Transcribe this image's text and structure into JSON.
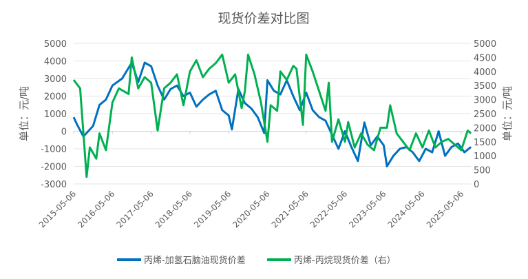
{
  "chart_data": {
    "type": "line",
    "title": "现货价差对比图",
    "ylabel_left": "单位：元/吨",
    "ylabel_right": "单位：元/吨",
    "ylim_left": [
      -3000,
      5000
    ],
    "ylim_right": [
      0,
      5000
    ],
    "yticks_left": [
      5000,
      4000,
      3000,
      2000,
      1000,
      0,
      -1000,
      -2000,
      -3000
    ],
    "yticks_right": [
      5000,
      4500,
      4000,
      3500,
      3000,
      2500,
      2000,
      1500,
      1000,
      500,
      0
    ],
    "xticks": [
      "2015-05-06",
      "2016-05-06",
      "2017-05-06",
      "2018-05-06",
      "2019-05-06",
      "2020-05-06",
      "2021-05-06",
      "2022-05-06",
      "2023-05-06",
      "2024-05-06",
      "2025-05-06"
    ],
    "grid": "horizontal",
    "legend": "bottom",
    "series": [
      {
        "name": "丙烯-加氢石脑油现货价差",
        "axis": "left",
        "color": "#0070C0",
        "x": [
          "2015-05",
          "2015-06",
          "2015-08",
          "2015-11",
          "2016-01",
          "2016-03",
          "2016-05",
          "2016-08",
          "2016-11",
          "2017-01",
          "2017-03",
          "2017-05",
          "2017-07",
          "2017-09",
          "2017-11",
          "2018-01",
          "2018-03",
          "2018-05",
          "2018-07",
          "2018-09",
          "2018-11",
          "2019-01",
          "2019-03",
          "2019-05",
          "2019-06",
          "2019-08",
          "2019-10",
          "2019-12",
          "2020-02",
          "2020-04",
          "2020-05",
          "2020-07",
          "2020-09",
          "2020-11",
          "2021-01",
          "2021-03",
          "2021-05",
          "2021-07",
          "2021-09",
          "2021-11",
          "2022-01",
          "2022-03",
          "2022-05",
          "2022-07",
          "2022-09",
          "2022-11",
          "2023-01",
          "2023-03",
          "2023-05",
          "2023-06",
          "2023-08",
          "2023-10",
          "2023-12",
          "2024-02",
          "2024-04",
          "2024-06",
          "2024-08",
          "2024-10",
          "2024-12",
          "2025-02",
          "2025-04",
          "2025-06",
          "2025-08"
        ],
        "values": [
          800,
          400,
          -300,
          300,
          1500,
          1800,
          2600,
          3000,
          3900,
          2800,
          3900,
          3700,
          2600,
          1800,
          2400,
          2600,
          2000,
          2200,
          1400,
          1800,
          2100,
          2300,
          1200,
          900,
          100,
          2400,
          1600,
          1300,
          800,
          -100,
          2900,
          2300,
          2100,
          2900,
          2000,
          1200,
          2200,
          1200,
          800,
          600,
          -200,
          -1000,
          0,
          -900,
          -1700,
          500,
          -800,
          -300,
          -800,
          -2000,
          -1400,
          -1000,
          -900,
          -1200,
          -1700,
          -1000,
          -1200,
          0,
          -1400,
          -900,
          -700,
          -1200,
          -900
        ]
      },
      {
        "name": "丙烯-丙烷现货价差（右）",
        "axis": "right",
        "color": "#00B050",
        "x": [
          "2015-05",
          "2015-07",
          "2015-09",
          "2015-10",
          "2015-12",
          "2016-01",
          "2016-03",
          "2016-05",
          "2016-07",
          "2016-10",
          "2016-11",
          "2017-01",
          "2017-03",
          "2017-05",
          "2017-07",
          "2017-09",
          "2017-11",
          "2018-01",
          "2018-03",
          "2018-05",
          "2018-07",
          "2018-09",
          "2018-11",
          "2019-01",
          "2019-03",
          "2019-05",
          "2019-07",
          "2019-09",
          "2019-10",
          "2019-11",
          "2020-01",
          "2020-03",
          "2020-05",
          "2020-06",
          "2020-08",
          "2020-09",
          "2020-11",
          "2021-01",
          "2021-02",
          "2021-04",
          "2021-05",
          "2021-07",
          "2021-09",
          "2021-11",
          "2021-12",
          "2022-01",
          "2022-03",
          "2022-05",
          "2022-06",
          "2022-08",
          "2022-10",
          "2022-12",
          "2023-02",
          "2023-04",
          "2023-06",
          "2023-07",
          "2023-09",
          "2023-11",
          "2024-01",
          "2024-03",
          "2024-05",
          "2024-07",
          "2024-09",
          "2024-11",
          "2025-01",
          "2025-03",
          "2025-05",
          "2025-07",
          "2025-08"
        ],
        "values": [
          3700,
          3400,
          250,
          1300,
          900,
          1800,
          1200,
          2900,
          3400,
          3200,
          4500,
          3400,
          3800,
          3600,
          1900,
          3400,
          3600,
          3900,
          2800,
          4000,
          4400,
          3800,
          4100,
          4300,
          4600,
          3600,
          3900,
          2700,
          3300,
          4600,
          3900,
          2900,
          1500,
          2800,
          2600,
          4000,
          3700,
          4200,
          4100,
          2100,
          4600,
          4000,
          3300,
          2600,
          3600,
          1500,
          2300,
          1500,
          2200,
          1300,
          1800,
          1400,
          1200,
          2000,
          2000,
          2800,
          1800,
          1500,
          1200,
          1800,
          1300,
          1900,
          1300,
          1500,
          1600,
          1400,
          1200,
          1900,
          1800
        ]
      }
    ]
  }
}
